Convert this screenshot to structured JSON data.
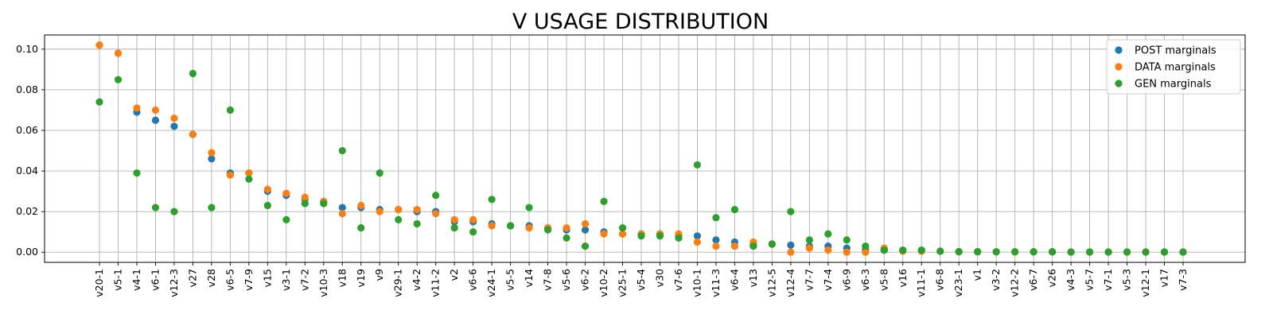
{
  "chart_data": {
    "type": "scatter",
    "title": "V USAGE DISTRIBUTION",
    "xlabel": "",
    "ylabel": "",
    "ylim": [
      -0.005,
      0.107
    ],
    "yticks": [
      0.0,
      0.02,
      0.04,
      0.06,
      0.08,
      0.1
    ],
    "ytick_labels": [
      "0.00",
      "0.02",
      "0.04",
      "0.06",
      "0.08",
      "0.10"
    ],
    "grid": true,
    "legend": "top-right",
    "categories": [
      "v20-1",
      "v5-1",
      "v4-1",
      "v6-1",
      "v12-3",
      "v27",
      "v28",
      "v6-5",
      "v7-9",
      "v15",
      "v3-1",
      "v7-2",
      "v10-3",
      "v18",
      "v19",
      "v9",
      "v29-1",
      "v4-2",
      "v11-2",
      "v2",
      "v6-6",
      "v24-1",
      "v5-5",
      "v14",
      "v7-8",
      "v5-6",
      "v6-2",
      "v10-2",
      "v25-1",
      "v5-4",
      "v30",
      "v7-6",
      "v10-1",
      "v11-3",
      "v6-4",
      "v13",
      "v12-5",
      "v12-4",
      "v7-7",
      "v7-4",
      "v6-9",
      "v6-3",
      "v5-8",
      "v16",
      "v11-1",
      "v6-8",
      "v23-1",
      "v1",
      "v3-2",
      "v12-2",
      "v6-7",
      "v26",
      "v4-3",
      "v5-7",
      "v7-1",
      "v5-3",
      "v12-1",
      "v17",
      "v7-3"
    ],
    "series": [
      {
        "name": "POST marginals",
        "color": "#1f77b4",
        "values": [
          0.102,
          0.098,
          0.069,
          0.065,
          0.062,
          0.058,
          0.046,
          0.039,
          0.039,
          0.03,
          0.028,
          0.026,
          0.025,
          0.022,
          0.022,
          0.021,
          0.021,
          0.02,
          0.02,
          0.015,
          0.015,
          0.014,
          0.013,
          0.013,
          0.012,
          0.011,
          0.011,
          0.01,
          0.009,
          0.009,
          0.009,
          0.008,
          0.008,
          0.006,
          0.005,
          0.004,
          0.004,
          0.0035,
          0.003,
          0.003,
          0.002,
          0.001,
          0.001,
          0.001,
          0.001,
          0.0005,
          0.0003,
          0.0003,
          0.0002,
          0.0002,
          0.0002,
          0.0002,
          0.0001,
          0.0001,
          0.0001,
          0.0001,
          0.0001,
          0.0001,
          0.0001
        ]
      },
      {
        "name": "DATA marginals",
        "color": "#ff7f0e",
        "values": [
          0.102,
          0.098,
          0.071,
          0.07,
          0.066,
          0.058,
          0.049,
          0.038,
          0.039,
          0.031,
          0.029,
          0.027,
          0.025,
          0.019,
          0.023,
          0.02,
          0.021,
          0.021,
          0.019,
          0.016,
          0.016,
          0.013,
          0.013,
          0.012,
          0.012,
          0.012,
          0.014,
          0.009,
          0.009,
          0.009,
          0.009,
          0.009,
          0.005,
          0.003,
          0.003,
          0.005,
          0.004,
          0.0,
          0.002,
          0.001,
          0.0,
          0.0,
          0.002,
          0.0005,
          0.0005,
          0.0005,
          0.0002,
          0.0002,
          0.0002,
          0.0002,
          0.0002,
          0.0002,
          0.0001,
          0.0001,
          0.0001,
          0.0001,
          0.0001,
          0.0001,
          0.0001
        ]
      },
      {
        "name": "GEN marginals",
        "color": "#2ca02c",
        "values": [
          0.074,
          0.085,
          0.039,
          0.022,
          0.02,
          0.088,
          0.022,
          0.07,
          0.036,
          0.023,
          0.016,
          0.024,
          0.024,
          0.05,
          0.012,
          0.039,
          0.016,
          0.014,
          0.028,
          0.012,
          0.01,
          0.026,
          0.013,
          0.022,
          0.011,
          0.007,
          0.003,
          0.025,
          0.012,
          0.008,
          0.008,
          0.007,
          0.043,
          0.017,
          0.021,
          0.003,
          0.004,
          0.02,
          0.006,
          0.009,
          0.006,
          0.003,
          0.001,
          0.001,
          0.001,
          0.0005,
          0.0002,
          0.0002,
          0.0002,
          0.0002,
          0.0002,
          0.0002,
          0.0001,
          0.0001,
          0.0001,
          0.0001,
          0.0001,
          0.0001,
          0.0001
        ]
      }
    ]
  }
}
